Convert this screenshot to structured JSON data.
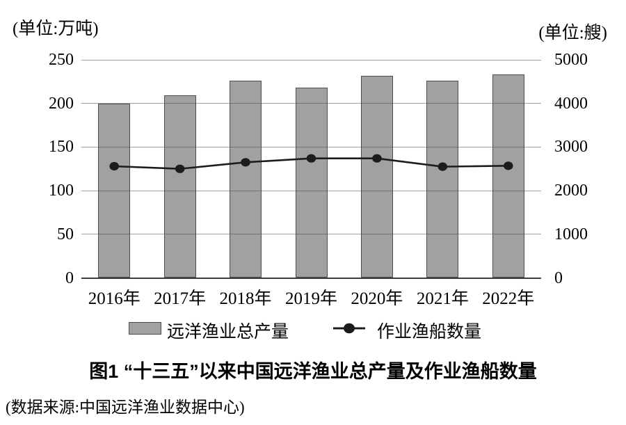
{
  "figure": {
    "title": "图1  “十三五”以来中国远洋渔业总产量及作业渔船数量",
    "source": "(数据来源:中国远洋渔业数据中心)",
    "left_unit": "(单位:万吨)",
    "right_unit": "(单位:艘)"
  },
  "legend": {
    "bar_label": "远洋渔业总产量",
    "line_label": "作业渔船数量"
  },
  "colors": {
    "bar_fill": "#a1a1a1",
    "bar_border": "#4d4d4d",
    "gridline": "#8e8e8e",
    "axis": "#3d3d3d",
    "line": "#1c1c1c",
    "text": "#000000"
  },
  "chart_data": {
    "type": "bar",
    "subtype": "bar+line combo, dual axis",
    "title": "图1  “十三五”以来中国远洋渔业总产量及作业渔船数量",
    "categories": [
      "2016年",
      "2017年",
      "2018年",
      "2019年",
      "2020年",
      "2021年",
      "2022年"
    ],
    "series": [
      {
        "name": "远洋渔业总产量",
        "type": "bar",
        "axis": "left",
        "values": [
          200,
          209,
          226,
          218,
          232,
          226,
          233
        ]
      },
      {
        "name": "作业渔船数量",
        "type": "line",
        "axis": "right",
        "values": [
          2560,
          2500,
          2650,
          2740,
          2740,
          2550,
          2570
        ]
      }
    ],
    "left_axis": {
      "label": "(单位:万吨)",
      "ticks": [
        0,
        50,
        100,
        150,
        200,
        250
      ],
      "min": 0,
      "max": 250
    },
    "right_axis": {
      "label": "(单位:艘)",
      "ticks": [
        0,
        1000,
        2000,
        3000,
        4000,
        5000
      ],
      "min": 0,
      "max": 5000
    },
    "grid": "horizontal gridlines on",
    "legend_position": "bottom"
  }
}
